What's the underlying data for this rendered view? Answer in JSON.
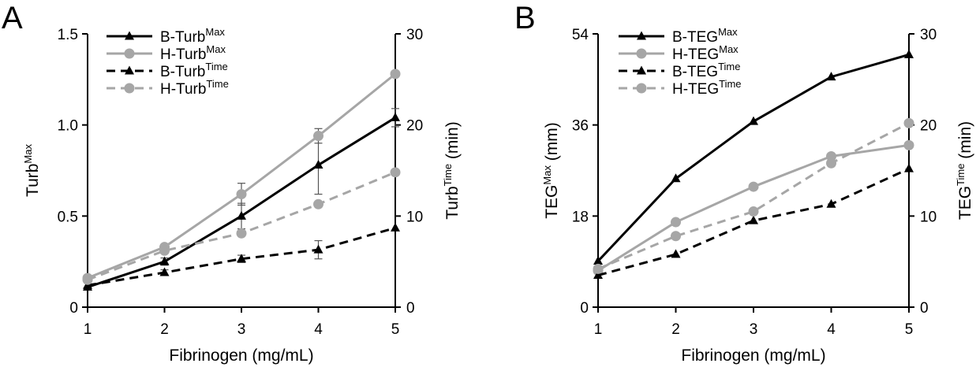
{
  "chart_data": [
    {
      "type": "line",
      "panel": "A",
      "x": [
        1,
        2,
        3,
        4,
        5
      ],
      "xlabel": "Fibrinogen  (mg/mL)",
      "xlim": [
        1,
        5
      ],
      "xticks": [
        "1",
        "2",
        "3",
        "4",
        "5"
      ],
      "ylabel_base": "Turb",
      "ylabel_sup": "Max",
      "ylim": [
        0,
        1.5
      ],
      "yticks": [
        "0",
        "0.5",
        "1.0",
        "1.5"
      ],
      "y2label_base": "Turb",
      "y2label_sup": "Time",
      "y2label_unit": "(min)",
      "y2lim": [
        0,
        30
      ],
      "y2ticks": [
        "0",
        "10",
        "20",
        "30"
      ],
      "series": [
        {
          "name_base": "B-Turb",
          "name_sup": "Max",
          "axis": "left",
          "color": "#000000",
          "dash": false,
          "marker": "triangle",
          "values": [
            0.11,
            0.25,
            0.5,
            0.78,
            1.04
          ],
          "err": [
            0.0,
            0.02,
            0.07,
            0.16,
            0.05
          ]
        },
        {
          "name_base": "H-Turb",
          "name_sup": "Max",
          "axis": "left",
          "color": "#a6a6a6",
          "dash": false,
          "marker": "circle",
          "values": [
            0.16,
            0.33,
            0.62,
            0.94,
            1.28
          ],
          "err": [
            0.0,
            0.0,
            0.06,
            0.04,
            0.0
          ]
        },
        {
          "name_base": "B-Turb",
          "name_sup": "Time",
          "axis": "right",
          "color": "#000000",
          "dash": true,
          "marker": "triangle",
          "values": [
            2.4,
            3.8,
            5.3,
            6.3,
            8.7
          ],
          "err": [
            0.0,
            0.3,
            0.4,
            1.0,
            0.0
          ]
        },
        {
          "name_base": "H-Turb",
          "name_sup": "Time",
          "axis": "right",
          "color": "#a6a6a6",
          "dash": true,
          "marker": "circle",
          "values": [
            3.0,
            6.2,
            8.1,
            11.3,
            14.8
          ],
          "err": [
            0.0,
            0.0,
            0.0,
            0.0,
            0.0
          ]
        }
      ]
    },
    {
      "type": "line",
      "panel": "B",
      "x": [
        1,
        2,
        3,
        4,
        5
      ],
      "xlabel": "Fibrinogen  (mg/mL)",
      "xlim": [
        1,
        5
      ],
      "xticks": [
        "1",
        "2",
        "3",
        "4",
        "5"
      ],
      "ylabel_base": "TEG",
      "ylabel_sup": "Max",
      "ylabel_unit": "(mm)",
      "ylim": [
        0,
        54
      ],
      "yticks": [
        "0",
        "18",
        "36",
        "54"
      ],
      "y2label_base": "TEG",
      "y2label_sup": "Time",
      "y2label_unit": "(min)",
      "y2lim": [
        0,
        30
      ],
      "y2ticks": [
        "0",
        "10",
        "20",
        "30"
      ],
      "series": [
        {
          "name_base": "B-TEG",
          "name_sup": "Max",
          "axis": "left",
          "color": "#000000",
          "dash": false,
          "marker": "triangle",
          "values": [
            9.1,
            25.4,
            36.7,
            45.5,
            49.9
          ],
          "err": [
            0,
            0,
            0,
            0,
            0
          ]
        },
        {
          "name_base": "H-TEG",
          "name_sup": "Max",
          "axis": "left",
          "color": "#a6a6a6",
          "dash": false,
          "marker": "circle",
          "values": [
            7.2,
            16.8,
            23.8,
            29.8,
            32.0
          ],
          "err": [
            0,
            0,
            0,
            0,
            0
          ]
        },
        {
          "name_base": "B-TEG",
          "name_sup": "Time",
          "axis": "right",
          "color": "#000000",
          "dash": true,
          "marker": "triangle",
          "values": [
            3.5,
            5.8,
            9.5,
            11.3,
            15.2
          ],
          "err": [
            0,
            0,
            0,
            0,
            0
          ]
        },
        {
          "name_base": "H-TEG",
          "name_sup": "Time",
          "axis": "right",
          "color": "#a6a6a6",
          "dash": true,
          "marker": "circle",
          "values": [
            4.2,
            7.8,
            10.5,
            15.8,
            20.2
          ],
          "err": [
            0,
            0,
            0,
            0,
            0
          ]
        }
      ]
    }
  ]
}
